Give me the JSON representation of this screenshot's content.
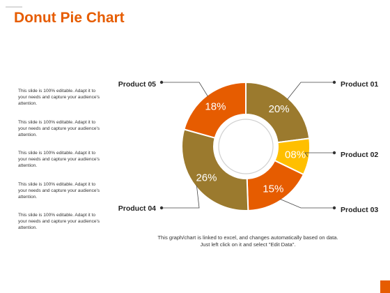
{
  "header": {
    "title": "Donut Pie Chart"
  },
  "notes": [
    "This slide is 100% editable. Adapt it to your needs and capture your audience's attention.",
    "This slide is 100% editable. Adapt it to your needs and capture your audience's attention.",
    "This slide is 100% editable. Adapt it to your needs and capture your audience's attention.",
    "This slide is 100% editable. Adapt it to your needs and capture your audience's attention.",
    "This slide is 100% editable. Adapt it to your needs and capture your audience's attention."
  ],
  "footer": {
    "text": "This graph/chart is linked to excel, and changes automatically based on data. Just left click on it and select \"Edit Data\"."
  },
  "colors": {
    "accent": "#e65c00",
    "olive": "#9b7a2e",
    "amber": "#ffbf00",
    "orange": "#e65c00"
  },
  "chart_data": {
    "type": "pie",
    "donut": true,
    "slices": [
      {
        "label": "Product 01",
        "value": 20,
        "display": "20%",
        "color": "#9b7a2e"
      },
      {
        "label": "Product 02",
        "value": 8,
        "display": "08%",
        "color": "#ffbf00"
      },
      {
        "label": "Product 03",
        "value": 15,
        "display": "15%",
        "color": "#e65c00"
      },
      {
        "label": "Product 04",
        "value": 26,
        "display": "26%",
        "color": "#9b7a2e"
      },
      {
        "label": "Product 05",
        "value": 18,
        "display": "18%",
        "color": "#e65c00"
      }
    ]
  }
}
